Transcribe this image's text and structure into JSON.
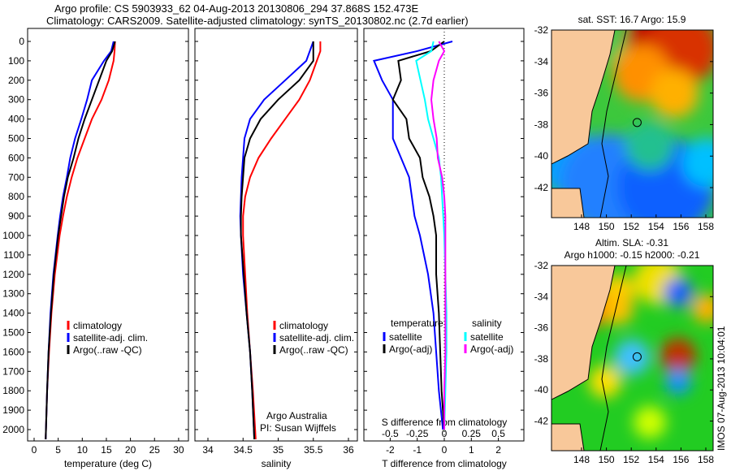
{
  "title_line1": "Argo profile: CS 5903933_62 04-Aug-2013 20130806_294 37.868S 152.473E",
  "title_line2": "Climatology: CARS2009. Satellite-adjusted climatology: synTS_20130802.nc (2.7d earlier)",
  "colors": {
    "clim": "#ff0000",
    "sat": "#0000ff",
    "argo": "#000000",
    "sal_sat": "#00ffff",
    "sal_argo": "#ff00ff"
  },
  "chart_data": [
    {
      "type": "line",
      "name": "temperature",
      "xlabel": "temperature (deg C)",
      "ylabel": "",
      "xlim": [
        -1.3,
        32
      ],
      "ylim": [
        2050,
        0
      ],
      "xticks": [
        0,
        5,
        10,
        15,
        20,
        25,
        30
      ],
      "yticks": [
        0,
        100,
        200,
        300,
        400,
        500,
        600,
        700,
        800,
        900,
        1000,
        1100,
        1200,
        1300,
        1400,
        1500,
        1600,
        1700,
        1800,
        1900,
        2000
      ],
      "legend": [
        "climatology",
        "satellite-adj. clim.",
        "Argo(..raw -QC)"
      ],
      "depth": [
        0,
        50,
        100,
        200,
        300,
        400,
        500,
        600,
        700,
        800,
        900,
        1000,
        1200,
        1400,
        1600,
        1800,
        2050
      ],
      "series": [
        {
          "name": "climatology",
          "values": [
            16.8,
            16.7,
            16.5,
            15.5,
            14,
            12,
            10.5,
            9,
            7.8,
            6.8,
            6,
            5.3,
            4.3,
            3.6,
            3.1,
            2.7,
            2.4
          ]
        },
        {
          "name": "satellite-adj. clim.",
          "values": [
            16.5,
            16,
            14.5,
            12,
            11,
            9.8,
            8.5,
            7.5,
            6.8,
            6,
            5.4,
            4.9,
            4,
            3.4,
            3,
            2.7,
            2.4
          ]
        },
        {
          "name": "Argo(..raw -QC)",
          "values": [
            16.8,
            16.2,
            15,
            13.5,
            12,
            10.5,
            9.2,
            8.2,
            7,
            6.2,
            5.6,
            5,
            4.1,
            3.5,
            3,
            2.7,
            2.4
          ]
        }
      ]
    },
    {
      "type": "line",
      "name": "salinity",
      "xlabel": "salinity",
      "xlim": [
        33.8,
        36.2
      ],
      "ylim": [
        2050,
        0
      ],
      "xticks": [
        34,
        34.5,
        35,
        35.5,
        36
      ],
      "legend": [
        "climatology",
        "satellite-adj. clim.",
        "Argo(..raw -QC)"
      ],
      "annotation": [
        "Argo Australia",
        "PI: Susan Wijffels"
      ],
      "depth": [
        0,
        50,
        100,
        200,
        300,
        400,
        500,
        600,
        700,
        800,
        900,
        1000,
        1200,
        1400,
        1600,
        1800,
        2050
      ],
      "series": [
        {
          "name": "climatology",
          "values": [
            35.6,
            35.6,
            35.55,
            35.45,
            35.3,
            35.1,
            34.9,
            34.72,
            34.6,
            34.53,
            34.5,
            34.5,
            34.53,
            34.56,
            34.6,
            34.64,
            34.68
          ]
        },
        {
          "name": "satellite-adj. clim.",
          "values": [
            35.5,
            35.45,
            35.4,
            35.1,
            34.8,
            34.6,
            34.52,
            34.5,
            34.48,
            34.47,
            34.46,
            34.47,
            34.5,
            34.55,
            34.6,
            34.63,
            34.66
          ]
        },
        {
          "name": "Argo(..raw -QC)",
          "values": [
            35.5,
            35.5,
            35.5,
            35.3,
            35,
            34.75,
            34.6,
            34.52,
            34.5,
            34.48,
            34.47,
            34.47,
            34.51,
            34.55,
            34.6,
            34.63,
            34.66
          ]
        }
      ]
    },
    {
      "type": "line",
      "name": "difference",
      "xlabel": "T difference from climatology",
      "x2label": "S difference from climatology",
      "xlim": [
        -3,
        3
      ],
      "x2lim": [
        -0.75,
        0.75
      ],
      "ylim": [
        2050,
        0
      ],
      "xticks": [
        -2,
        -1,
        0,
        1,
        2
      ],
      "x2ticks": [
        -0.5,
        -0.25,
        0,
        0.25,
        0.5
      ],
      "x2ticklabels": [
        "-0.5",
        "-0.25",
        "0",
        "0.25",
        "0.5"
      ],
      "legend_titles": [
        "temperature",
        "salinity"
      ],
      "depth": [
        0,
        50,
        100,
        200,
        300,
        400,
        500,
        600,
        700,
        800,
        900,
        1000,
        1200,
        1400,
        1600,
        1800,
        2000
      ],
      "series": [
        {
          "name": "satellite",
          "group": "temperature",
          "values": [
            0.3,
            -1,
            -2.6,
            -2.3,
            -1.9,
            -1.9,
            -1.9,
            -1.6,
            -1.3,
            -1.2,
            -1.1,
            -0.9,
            -0.6,
            -0.4,
            -0.3,
            -0.2,
            -0.05
          ]
        },
        {
          "name": "Argo(-adj)",
          "group": "temperature",
          "values": [
            0,
            -0.5,
            -1.7,
            -1.6,
            -1.9,
            -1.4,
            -1.3,
            -0.9,
            -0.8,
            -0.55,
            -0.4,
            -0.3,
            -0.3,
            -0.2,
            -0.15,
            -0.1,
            0
          ]
        },
        {
          "name": "satellite",
          "group": "salinity",
          "values": [
            -0.1,
            -0.12,
            -0.26,
            -0.22,
            -0.18,
            -0.15,
            -0.1,
            -0.05,
            -0.03,
            -0.02,
            -0.01,
            0,
            0.01,
            0.02,
            0.02,
            0.01,
            0
          ]
        },
        {
          "name": "Argo(-adj)",
          "group": "salinity",
          "values": [
            -0.05,
            0,
            -0.05,
            -0.1,
            -0.12,
            -0.1,
            -0.07,
            -0.06,
            -0.02,
            0,
            0.01,
            0.01,
            0.01,
            0.01,
            0.01,
            0,
            0
          ]
        }
      ]
    }
  ],
  "map_sst": {
    "title": "sat. SST: 16.7  Argo: 15.9",
    "xticks": [
      "148",
      "150",
      "152",
      "154",
      "156",
      "158"
    ],
    "yticks": [
      "-32",
      "-34",
      "-36",
      "-38",
      "-40",
      "-42"
    ],
    "argo_lon": 152.473,
    "argo_lat": -37.868
  },
  "map_sla": {
    "title1": "Altim. SLA: -0.31",
    "title2": "Argo h1000: -0.15 h2000: -0.21",
    "xticks": [
      "148",
      "150",
      "152",
      "154",
      "156",
      "158"
    ],
    "yticks": [
      "-32",
      "-34",
      "-36",
      "-38",
      "-40",
      "-42"
    ]
  },
  "imos_stamp": "IMOS 07-Aug-2013 10:04:01"
}
